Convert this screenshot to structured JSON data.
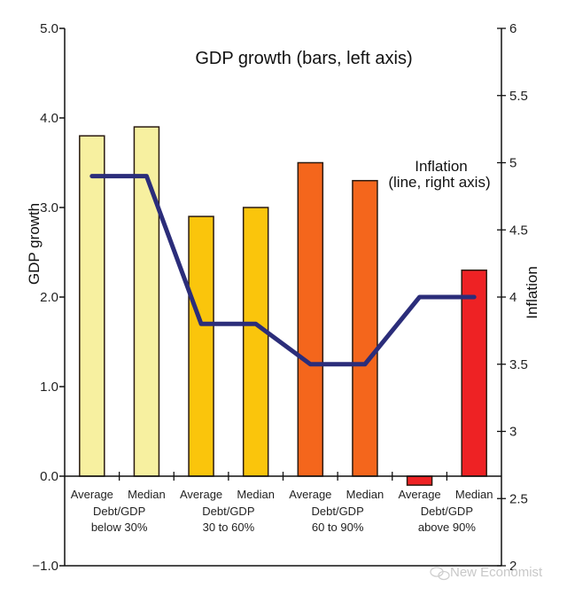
{
  "chart_data": {
    "type": "bar",
    "title": "GDP growth (bars, left axis)",
    "annotation": [
      "Inflation",
      "(line, right axis)"
    ],
    "ylabel": "GDP growth",
    "y2label": "Inflation",
    "ylim": [
      -1.0,
      5.0
    ],
    "y2lim": [
      2,
      6
    ],
    "yticks": [
      "5.0",
      "4.0",
      "3.0",
      "2.0",
      "1.0",
      "0.0",
      "−1.0"
    ],
    "ytick_values": [
      5,
      4,
      3,
      2,
      1,
      0,
      -1
    ],
    "y2ticks": [
      "6",
      "5.5",
      "5",
      "4.5",
      "4",
      "3.5",
      "3",
      "2.5",
      "2"
    ],
    "y2tick_values": [
      6,
      5.5,
      5,
      4.5,
      4,
      3.5,
      3,
      2.5,
      2
    ],
    "categories": [
      "Average",
      "Median",
      "Average",
      "Median",
      "Average",
      "Median",
      "Average",
      "Median"
    ],
    "groups": [
      {
        "line1": "Debt/GDP",
        "line2": "below 30%"
      },
      {
        "line1": "Debt/GDP",
        "line2": "30 to 60%"
      },
      {
        "line1": "Debt/GDP",
        "line2": "60 to 90%"
      },
      {
        "line1": "Debt/GDP",
        "line2": "above 90%"
      }
    ],
    "series": [
      {
        "name": "GDP growth",
        "kind": "bar",
        "axis": "left",
        "values": [
          3.8,
          3.9,
          2.9,
          3.0,
          3.5,
          3.3,
          -0.1,
          2.3
        ],
        "colors": [
          "#f7f0a0",
          "#f7f0a0",
          "#fac50c",
          "#fac50c",
          "#f4661c",
          "#f4661c",
          "#ee2224",
          "#ee2224"
        ]
      },
      {
        "name": "Inflation",
        "kind": "line",
        "axis": "right",
        "values": [
          4.9,
          4.9,
          3.8,
          3.8,
          3.5,
          3.5,
          4.0,
          4.0
        ],
        "color": "#2b2d7a"
      }
    ],
    "grid": false,
    "legend": "none"
  },
  "watermark": "New Economist"
}
